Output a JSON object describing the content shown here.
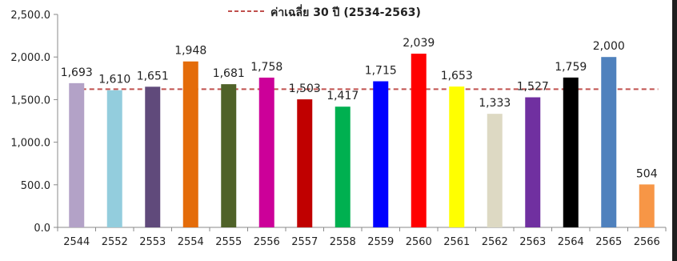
{
  "chart_data": {
    "type": "bar",
    "title": "",
    "xlabel": "",
    "ylabel": "",
    "categories": [
      "2544",
      "2552",
      "2553",
      "2554",
      "2555",
      "2556",
      "2557",
      "2558",
      "2559",
      "2560",
      "2561",
      "2562",
      "2563",
      "2564",
      "2565",
      "2566"
    ],
    "values": [
      1693,
      1610,
      1651,
      1948,
      1681,
      1758,
      1503,
      1417,
      1715,
      2039,
      1653,
      1333,
      1527,
      1759,
      2000,
      504
    ],
    "data_labels": [
      "1,693",
      "1,610",
      "1,651",
      "1,948",
      "1,681",
      "1,758",
      "1,503",
      "1,417",
      "1,715",
      "2,039",
      "1,653",
      "1,333",
      "1,527",
      "1,759",
      "2,000",
      "504"
    ],
    "bar_colors": [
      "#B3A2C7",
      "#93CDDD",
      "#604A7B",
      "#E46C0A",
      "#4F6228",
      "#CC0099",
      "#C00000",
      "#00B050",
      "#0000FF",
      "#FF0000",
      "#FFFF00",
      "#DDD9C3",
      "#7030A0",
      "#000000",
      "#4F81BD",
      "#F79646"
    ],
    "ylim": [
      0,
      2500
    ],
    "yticks": [
      0,
      500,
      1000,
      1500,
      2000,
      2500
    ],
    "ytick_labels": [
      "0.0",
      "500.0",
      "1,000.0",
      "1,500.0",
      "2,000.0",
      "2,500.0"
    ],
    "grid": false,
    "reference_line": {
      "name": "ค่าเฉลี่ย 30 ปี (2534-2563)",
      "value": 1622,
      "color": "#C0504D",
      "style": "dashed"
    },
    "legend": {
      "position": "top-center",
      "entries": [
        "ค่าเฉลี่ย 30 ปี (2534-2563)"
      ]
    }
  }
}
